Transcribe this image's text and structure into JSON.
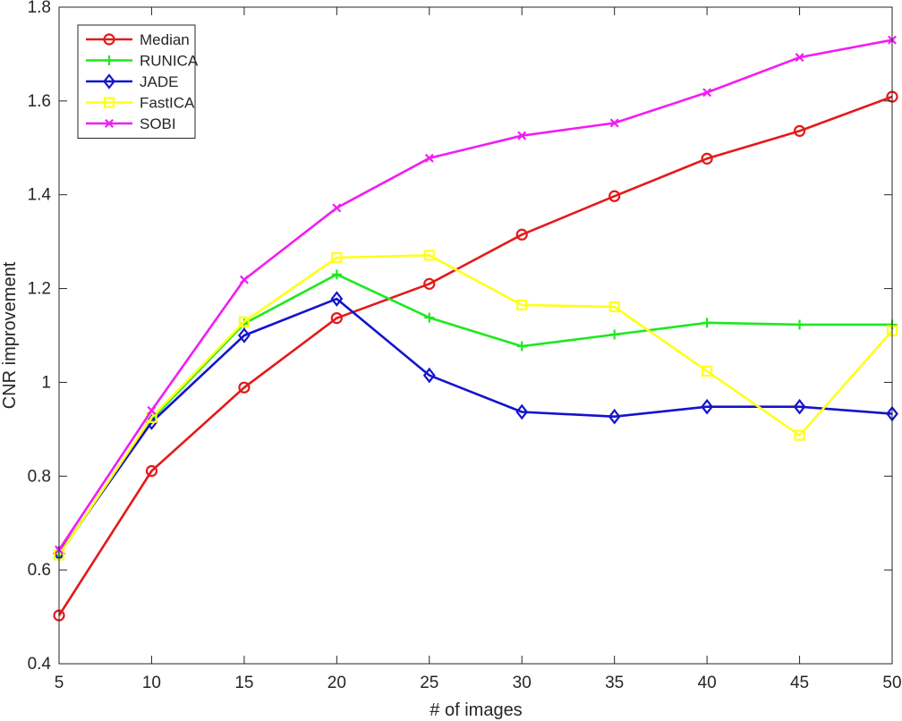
{
  "chart_data": {
    "type": "line",
    "title": "",
    "xlabel": "# of images",
    "ylabel": "CNR improvement",
    "x": [
      5,
      10,
      15,
      20,
      25,
      30,
      35,
      40,
      45,
      50
    ],
    "xlim": [
      5,
      50
    ],
    "ylim": [
      0.4,
      1.8
    ],
    "xticks": [
      5,
      10,
      15,
      20,
      25,
      30,
      35,
      40,
      45,
      50
    ],
    "yticks": [
      0.4,
      0.6,
      0.8,
      1,
      1.2,
      1.4,
      1.6,
      1.8
    ],
    "xtick_labels": [
      "5",
      "10",
      "15",
      "20",
      "25",
      "30",
      "35",
      "40",
      "45",
      "50"
    ],
    "ytick_labels": [
      "0.4",
      "0.6",
      "0.8",
      "1",
      "1.2",
      "1.4",
      "1.6",
      "1.8"
    ],
    "grid": false,
    "legend_position": "top-left",
    "series": [
      {
        "name": "Median",
        "color": "#e41a1a",
        "marker": "circle",
        "values": [
          0.503,
          0.811,
          0.989,
          1.137,
          1.21,
          1.315,
          1.397,
          1.477,
          1.536,
          1.609
        ]
      },
      {
        "name": "RUNICA",
        "color": "#1ee81e",
        "marker": "plus",
        "values": [
          0.632,
          0.921,
          1.125,
          1.23,
          1.138,
          1.077,
          1.102,
          1.127,
          1.123,
          1.123
        ]
      },
      {
        "name": "JADE",
        "color": "#1414cc",
        "marker": "diamond",
        "values": [
          0.635,
          0.915,
          1.1,
          1.178,
          1.015,
          0.937,
          0.927,
          0.948,
          0.948,
          0.933
        ]
      },
      {
        "name": "FastICA",
        "color": "#ffff1a",
        "marker": "square",
        "values": [
          0.632,
          0.925,
          1.129,
          1.266,
          1.271,
          1.165,
          1.161,
          1.024,
          0.887,
          1.11
        ]
      },
      {
        "name": "SOBI",
        "color": "#f21df2",
        "marker": "x",
        "values": [
          0.643,
          0.94,
          1.219,
          1.372,
          1.478,
          1.526,
          1.553,
          1.618,
          1.693,
          1.73
        ]
      }
    ]
  }
}
